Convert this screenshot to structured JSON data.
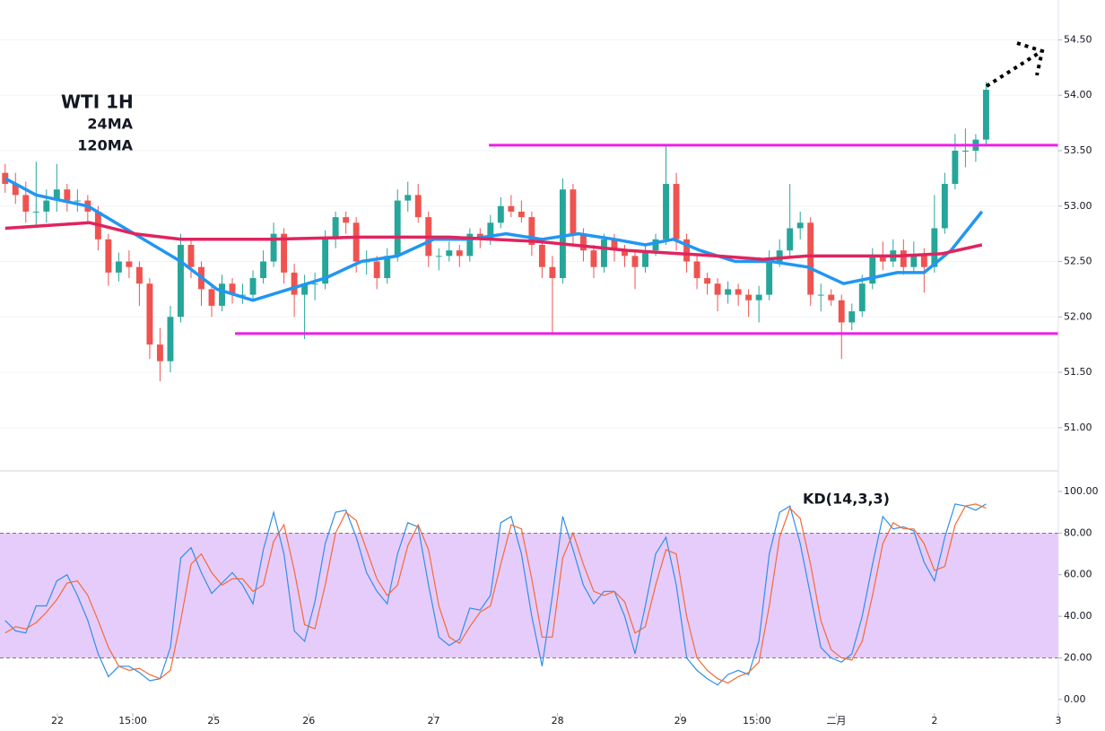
{
  "chart_data": [
    {
      "type": "candlestick",
      "title": "WTI 1H",
      "title_color": "#0e4b3a",
      "up_color": "#26a69a",
      "down_color": "#ef5350",
      "xlim": [
        -0.5,
        102
      ],
      "ylim": [
        50.61,
        54.86
      ],
      "yticks": [
        {
          "value": 51,
          "label": "51.00"
        },
        {
          "value": 51.5,
          "label": "51.50"
        },
        {
          "value": 52,
          "label": "52.00"
        },
        {
          "value": 52.5,
          "label": "52.50"
        },
        {
          "value": 53,
          "label": "53.00"
        },
        {
          "value": 53.5,
          "label": "53.50"
        },
        {
          "value": 54,
          "label": "54.00"
        },
        {
          "value": 54.5,
          "label": "54.50"
        }
      ],
      "grid": true,
      "ohlc": [
        [
          53.3,
          53.38,
          53.12,
          53.2
        ],
        [
          53.2,
          53.3,
          53.02,
          53.1
        ],
        [
          53.1,
          53.22,
          52.85,
          52.95
        ],
        [
          52.95,
          53.4,
          52.82,
          52.95
        ],
        [
          52.95,
          53.15,
          52.85,
          53.05
        ],
        [
          53.05,
          53.38,
          52.95,
          53.15
        ],
        [
          53.15,
          53.2,
          52.95,
          53.05
        ],
        [
          53.05,
          53.15,
          52.95,
          53.05
        ],
        [
          53.05,
          53.1,
          52.85,
          52.95
        ],
        [
          52.95,
          53.0,
          52.6,
          52.7
        ],
        [
          52.7,
          52.75,
          52.28,
          52.4
        ],
        [
          52.4,
          52.58,
          52.32,
          52.5
        ],
        [
          52.5,
          52.6,
          52.35,
          52.45
        ],
        [
          52.45,
          52.5,
          52.1,
          52.3
        ],
        [
          52.3,
          52.35,
          51.62,
          51.75
        ],
        [
          51.75,
          51.9,
          51.42,
          51.6
        ],
        [
          51.6,
          52.1,
          51.5,
          52.0
        ],
        [
          52.0,
          52.75,
          51.95,
          52.65
        ],
        [
          52.65,
          52.7,
          52.35,
          52.45
        ],
        [
          52.45,
          52.5,
          52.1,
          52.25
        ],
        [
          52.25,
          52.3,
          52.0,
          52.1
        ],
        [
          52.1,
          52.38,
          52.05,
          52.3
        ],
        [
          52.3,
          52.35,
          52.12,
          52.2
        ],
        [
          52.2,
          52.3,
          52.12,
          52.2
        ],
        [
          52.2,
          52.42,
          52.15,
          52.35
        ],
        [
          52.35,
          52.6,
          52.3,
          52.5
        ],
        [
          52.5,
          52.85,
          52.45,
          52.75
        ],
        [
          52.75,
          52.8,
          52.3,
          52.4
        ],
        [
          52.4,
          52.48,
          52.0,
          52.2
        ],
        [
          52.2,
          52.38,
          51.8,
          52.3
        ],
        [
          52.3,
          52.4,
          52.15,
          52.3
        ],
        [
          52.3,
          52.78,
          52.25,
          52.7
        ],
        [
          52.7,
          52.95,
          52.62,
          52.9
        ],
        [
          52.9,
          52.95,
          52.75,
          52.85
        ],
        [
          52.85,
          52.9,
          52.4,
          52.5
        ],
        [
          52.5,
          52.6,
          52.38,
          52.5
        ],
        [
          52.5,
          52.55,
          52.25,
          52.35
        ],
        [
          52.35,
          52.62,
          52.3,
          52.55
        ],
        [
          52.55,
          53.15,
          52.5,
          53.05
        ],
        [
          53.05,
          53.22,
          52.95,
          53.1
        ],
        [
          53.1,
          53.2,
          52.85,
          52.9
        ],
        [
          52.9,
          52.95,
          52.45,
          52.55
        ],
        [
          52.55,
          52.62,
          52.42,
          52.55
        ],
        [
          52.55,
          52.68,
          52.5,
          52.6
        ],
        [
          52.6,
          52.65,
          52.45,
          52.55
        ],
        [
          52.55,
          52.8,
          52.5,
          52.75
        ],
        [
          52.75,
          52.8,
          52.62,
          52.7
        ],
        [
          52.7,
          52.92,
          52.65,
          52.85
        ],
        [
          52.85,
          53.08,
          52.8,
          53.0
        ],
        [
          53.0,
          53.1,
          52.9,
          52.95
        ],
        [
          52.95,
          53.05,
          52.85,
          52.9
        ],
        [
          52.9,
          52.95,
          52.55,
          52.65
        ],
        [
          52.65,
          52.7,
          52.35,
          52.45
        ],
        [
          52.45,
          52.55,
          51.85,
          52.35
        ],
        [
          52.35,
          53.25,
          52.3,
          53.15
        ],
        [
          53.15,
          53.2,
          52.65,
          52.75
        ],
        [
          52.75,
          52.8,
          52.5,
          52.6
        ],
        [
          52.6,
          52.65,
          52.35,
          52.45
        ],
        [
          52.45,
          52.75,
          52.4,
          52.7
        ],
        [
          52.7,
          52.75,
          52.5,
          52.6
        ],
        [
          52.6,
          52.65,
          52.45,
          52.55
        ],
        [
          52.55,
          52.6,
          52.25,
          52.45
        ],
        [
          52.45,
          52.65,
          52.4,
          52.6
        ],
        [
          52.6,
          52.75,
          52.55,
          52.7
        ],
        [
          52.7,
          53.55,
          52.65,
          53.2
        ],
        [
          53.2,
          53.3,
          52.6,
          52.7
        ],
        [
          52.7,
          52.75,
          52.4,
          52.5
        ],
        [
          52.5,
          52.55,
          52.25,
          52.35
        ],
        [
          52.35,
          52.4,
          52.2,
          52.3
        ],
        [
          52.3,
          52.35,
          52.05,
          52.2
        ],
        [
          52.2,
          52.32,
          52.12,
          52.25
        ],
        [
          52.25,
          52.3,
          52.1,
          52.2
        ],
        [
          52.2,
          52.25,
          52.0,
          52.15
        ],
        [
          52.15,
          52.28,
          51.95,
          52.2
        ],
        [
          52.2,
          52.6,
          52.15,
          52.5
        ],
        [
          52.5,
          52.7,
          52.45,
          52.6
        ],
        [
          52.6,
          53.2,
          52.55,
          52.8
        ],
        [
          52.8,
          52.95,
          52.7,
          52.85
        ],
        [
          52.85,
          52.9,
          52.1,
          52.2
        ],
        [
          52.2,
          52.3,
          52.05,
          52.2
        ],
        [
          52.2,
          52.25,
          52.1,
          52.15
        ],
        [
          52.15,
          52.2,
          51.62,
          51.95
        ],
        [
          51.95,
          52.12,
          51.88,
          52.05
        ],
        [
          52.05,
          52.38,
          52.0,
          52.3
        ],
        [
          52.3,
          52.62,
          52.25,
          52.55
        ],
        [
          52.55,
          52.68,
          52.42,
          52.5
        ],
        [
          52.5,
          52.7,
          52.45,
          52.6
        ],
        [
          52.6,
          52.7,
          52.38,
          52.45
        ],
        [
          52.45,
          52.68,
          52.4,
          52.55
        ],
        [
          52.55,
          52.62,
          52.22,
          52.45
        ],
        [
          52.45,
          53.1,
          52.4,
          52.8
        ],
        [
          52.8,
          53.3,
          52.75,
          53.2
        ],
        [
          53.2,
          53.65,
          53.15,
          53.5
        ],
        [
          53.5,
          53.7,
          53.35,
          53.5
        ],
        [
          53.5,
          53.65,
          53.4,
          53.6
        ],
        [
          53.6,
          54.12,
          53.55,
          54.05
        ]
      ],
      "series": [
        {
          "name": "24MA",
          "color": "#2196f3",
          "x": [
            0,
            3,
            8,
            12.5,
            17,
            20.5,
            24,
            27.5,
            31,
            34.5,
            38,
            41.5,
            45,
            48.5,
            52,
            55.5,
            59,
            62,
            64.7,
            67.3,
            70.7,
            74.2,
            77.7,
            81.2,
            83.8,
            86.4,
            89,
            91.6,
            94.6
          ],
          "values": [
            53.25,
            53.1,
            53.0,
            52.75,
            52.5,
            52.25,
            52.15,
            52.25,
            52.35,
            52.5,
            52.55,
            52.7,
            52.7,
            52.75,
            52.7,
            52.75,
            52.7,
            52.65,
            52.7,
            52.6,
            52.5,
            52.5,
            52.45,
            52.3,
            52.35,
            52.4,
            52.4,
            52.6,
            52.95
          ]
        },
        {
          "name": "120MA",
          "color": "#e0245e",
          "x": [
            0,
            8.2,
            12.5,
            17,
            25.6,
            34.2,
            43,
            51.6,
            60.3,
            69,
            73.4,
            77.7,
            86.4,
            90.7,
            94.6
          ],
          "values": [
            52.8,
            52.85,
            52.75,
            52.7,
            52.7,
            52.72,
            52.72,
            52.68,
            52.6,
            52.55,
            52.52,
            52.55,
            52.55,
            52.57,
            52.65
          ]
        }
      ],
      "levels": [
        {
          "value": 53.55,
          "from": 46.85
        },
        {
          "value": 51.85,
          "from": 22.26
        }
      ],
      "level_color": "#ee1ee6"
    },
    {
      "type": "line",
      "title": "KD(14,3,3)",
      "xlim": [
        -0.5,
        102
      ],
      "ylim": [
        -6.5,
        109.9
      ],
      "yticks": [
        {
          "value": 0,
          "label": "0.00"
        },
        {
          "value": 20,
          "label": "20.00"
        },
        {
          "value": 40,
          "label": "40.00"
        },
        {
          "value": 60,
          "label": "60.00"
        },
        {
          "value": 80,
          "label": "80.00"
        },
        {
          "value": 100,
          "label": "100.00"
        }
      ],
      "band": [
        20,
        80
      ],
      "band_color": "#e6ccfb",
      "xticks": [
        {
          "value": 5.06,
          "label": "22"
        },
        {
          "value": 12.36,
          "label": "15:00"
        },
        {
          "value": 20.2,
          "label": "25"
        },
        {
          "value": 29.4,
          "label": "26"
        },
        {
          "value": 41.5,
          "label": "27"
        },
        {
          "value": 53.5,
          "label": "28"
        },
        {
          "value": 65.4,
          "label": "29"
        },
        {
          "value": 72.8,
          "label": "15:00"
        },
        {
          "value": 80.5,
          "label": "二月"
        },
        {
          "value": 90.0,
          "label": "2"
        },
        {
          "value": 102.0,
          "label": "3"
        }
      ],
      "series": [
        {
          "color": "#2f8fe8",
          "values": [
            38,
            33,
            32,
            45,
            45,
            57,
            60,
            50,
            38,
            22,
            11,
            16,
            16,
            13,
            9,
            10,
            25,
            68,
            73,
            61,
            51,
            56,
            61,
            55,
            46,
            72,
            90,
            70,
            33,
            28,
            47,
            75,
            90,
            91,
            78,
            61,
            52,
            46,
            70,
            85,
            83,
            55,
            30,
            26,
            29,
            44,
            43,
            50,
            85,
            88,
            70,
            40,
            16,
            50,
            88,
            72,
            55,
            46,
            52,
            52,
            40,
            22,
            45,
            70,
            78,
            55,
            20,
            14,
            10,
            7,
            12,
            14,
            12,
            28,
            70,
            90,
            93,
            75,
            50,
            25,
            20,
            18,
            22,
            40,
            65,
            88,
            82,
            83,
            81,
            66,
            57,
            78,
            94,
            93,
            91,
            94
          ]
        },
        {
          "color": "#f26b38",
          "values": [
            32,
            35,
            34,
            37,
            42,
            48,
            56,
            57,
            50,
            38,
            25,
            16,
            14,
            15,
            12,
            10,
            14,
            38,
            65,
            70,
            61,
            55,
            58,
            58,
            52,
            55,
            76,
            84,
            62,
            36,
            34,
            55,
            80,
            90,
            86,
            72,
            58,
            50,
            55,
            74,
            84,
            72,
            45,
            30,
            27,
            35,
            42,
            45,
            65,
            84,
            82,
            58,
            30,
            30,
            68,
            80,
            65,
            52,
            50,
            52,
            47,
            32,
            35,
            55,
            72,
            70,
            40,
            20,
            14,
            10,
            8,
            11,
            13,
            18,
            45,
            78,
            92,
            87,
            65,
            38,
            24,
            20,
            19,
            28,
            50,
            75,
            85,
            82,
            82,
            75,
            62,
            64,
            84,
            93,
            94,
            92
          ]
        }
      ]
    }
  ]
}
